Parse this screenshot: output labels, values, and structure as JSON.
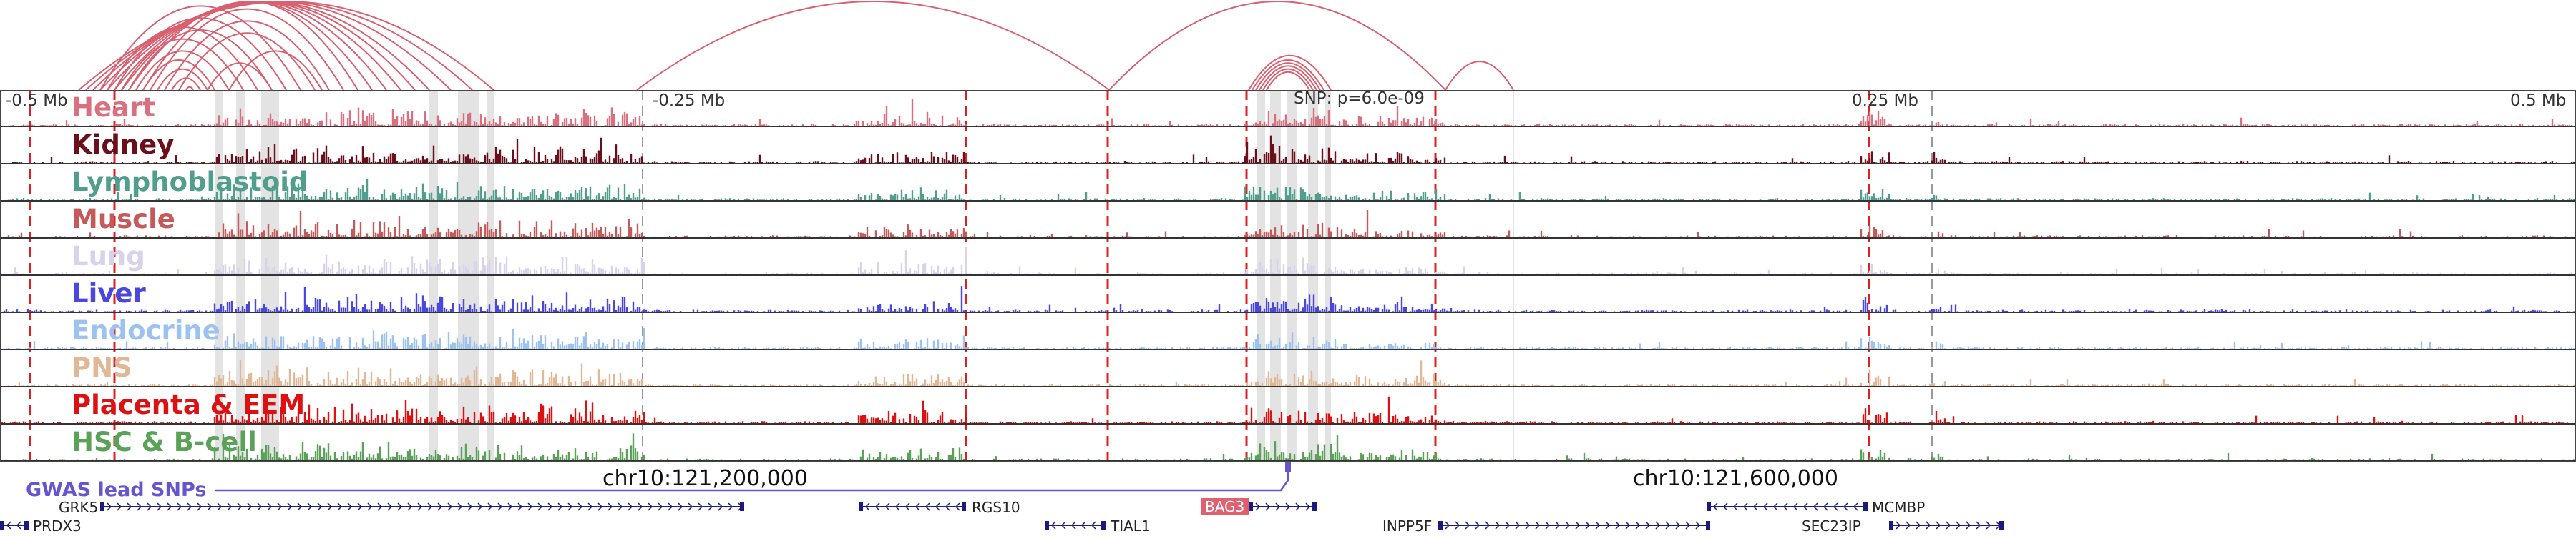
{
  "axis": {
    "ticks": [
      "-0.5 Mb",
      "-0.25 Mb",
      "0.25 Mb",
      "0.5 Mb"
    ],
    "snp_label": "SNP: p=6.0e-09",
    "coord_left": "chr10:121,200,000",
    "coord_right": "chr10:121,600,000"
  },
  "tracks": [
    {
      "label": "Heart",
      "color": "#d9707f"
    },
    {
      "label": "Kidney",
      "color": "#6b0f1a"
    },
    {
      "label": "Lymphoblastoid",
      "color": "#4f9e8e"
    },
    {
      "label": "Muscle",
      "color": "#c45a5a"
    },
    {
      "label": "Lung",
      "color": "#d8d2ea"
    },
    {
      "label": "Liver",
      "color": "#4a48dc"
    },
    {
      "label": "Endocrine",
      "color": "#9cc3ef"
    },
    {
      "label": "PNS",
      "color": "#e0b896"
    },
    {
      "label": "Placenta & EEM",
      "color": "#dd1111"
    },
    {
      "label": "HSC & B-cell",
      "color": "#5aa257"
    }
  ],
  "gwas": {
    "label": "GWAS lead SNPs",
    "color": "#6655cc"
  },
  "genes": [
    {
      "name": "GRK5"
    },
    {
      "name": "PRDX3"
    },
    {
      "name": "RGS10"
    },
    {
      "name": "TIAL1"
    },
    {
      "name": "BAG3"
    },
    {
      "name": "INPP5F"
    },
    {
      "name": "MCMBP"
    },
    {
      "name": "SEC23IP"
    }
  ],
  "colors": {
    "arc": "#d86070",
    "red_line": "#e02020",
    "grey_band": "#cccccc"
  }
}
